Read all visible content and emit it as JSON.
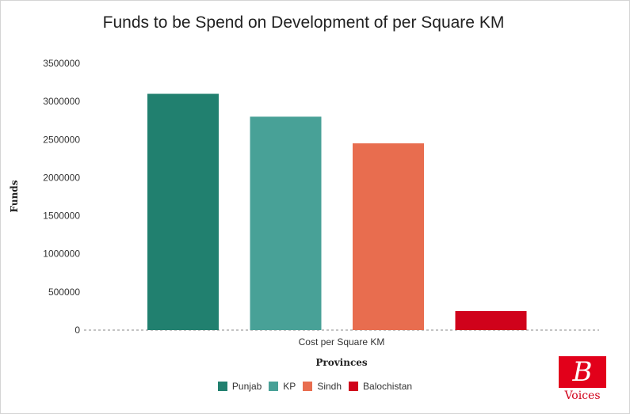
{
  "chart_data": {
    "type": "bar",
    "title": "Funds to be Spend on Development of per Square KM",
    "xlabel": "Provinces",
    "ylabel": "Funds",
    "categories": [
      "Cost per Square KM"
    ],
    "series": [
      {
        "name": "Punjab",
        "values": [
          3100000
        ],
        "color": "#21806f"
      },
      {
        "name": "KP",
        "values": [
          2800000
        ],
        "color": "#48a197"
      },
      {
        "name": "Sindh",
        "values": [
          2450000
        ],
        "color": "#e86d4f"
      },
      {
        "name": "Balochistan",
        "values": [
          250000
        ],
        "color": "#d0021b"
      }
    ],
    "ylim": [
      0,
      3500000
    ],
    "yticks": [
      "0",
      "500000",
      "1000000",
      "1500000",
      "2000000",
      "2500000",
      "3000000",
      "3500000"
    ],
    "grid": false,
    "legend_position": "bottom"
  },
  "logo": {
    "letter": "B",
    "word": "Voices",
    "color": "#e2001a"
  }
}
